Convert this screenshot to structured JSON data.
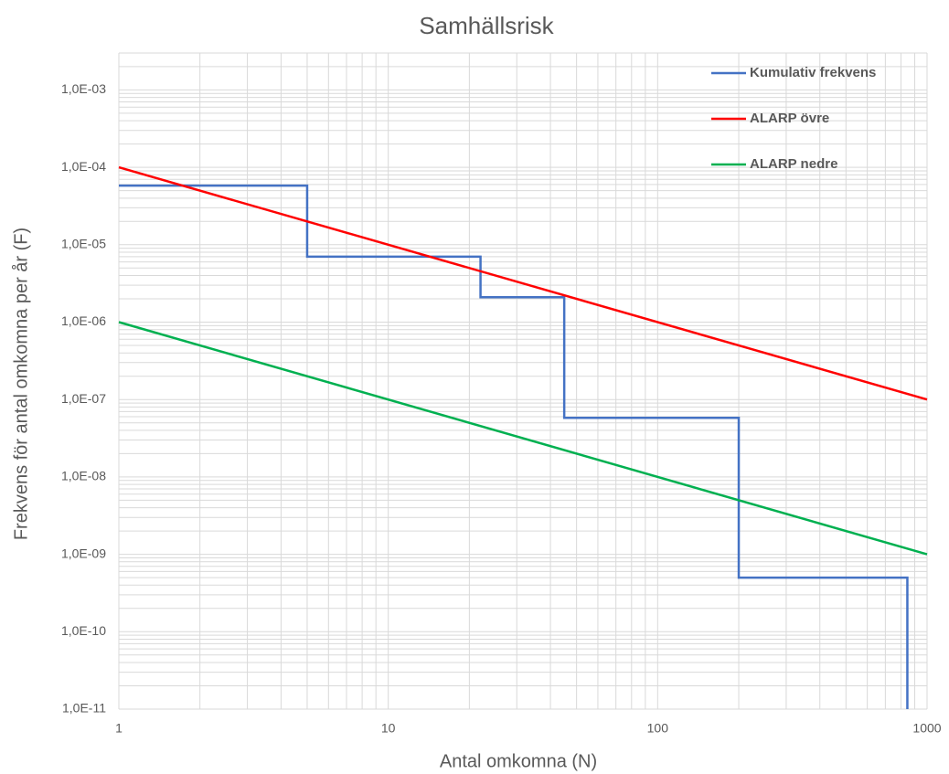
{
  "chart_data": {
    "type": "line",
    "title": "Samhällsrisk",
    "x_label": "Antal omkomna (N)",
    "y_label": "Frekvens för antal omkomna per år (F)",
    "log_x": true,
    "log_y": true,
    "grid": true,
    "minor_grid": true,
    "legend": "top-right",
    "xlim": [
      1,
      1000
    ],
    "xticks": [
      1,
      10,
      100,
      1000
    ],
    "ylim": [
      1e-11,
      0.003
    ],
    "yticks": [
      {
        "value": 1e-11,
        "label": "1,0E-11"
      },
      {
        "value": 1e-10,
        "label": "1,0E-10"
      },
      {
        "value": 1e-09,
        "label": "1,0E-09"
      },
      {
        "value": 1e-08,
        "label": "1,0E-08"
      },
      {
        "value": 1e-07,
        "label": "1,0E-07"
      },
      {
        "value": 1e-06,
        "label": "1,0E-06"
      },
      {
        "value": 1e-05,
        "label": "1,0E-05"
      },
      {
        "value": 0.0001,
        "label": "1,0E-04"
      },
      {
        "value": 0.001,
        "label": "1,0E-03"
      }
    ],
    "series": [
      {
        "name": "Kumulativ frekvens",
        "color": "#4472c4",
        "x": [
          1,
          5,
          5,
          22,
          22,
          45,
          45,
          200,
          200,
          845,
          845
        ],
        "values": [
          5.8e-05,
          5.8e-05,
          7e-06,
          7e-06,
          2.1e-06,
          2.1e-06,
          5.8e-08,
          5.8e-08,
          5e-10,
          5e-10,
          1e-11
        ]
      },
      {
        "name": "ALARP övre",
        "color": "#ff0000",
        "x": [
          1,
          1000
        ],
        "values": [
          0.0001,
          1e-07
        ]
      },
      {
        "name": "ALARP nedre",
        "color": "#00b050",
        "x": [
          1,
          1000
        ],
        "values": [
          1e-06,
          1e-09
        ]
      }
    ]
  }
}
